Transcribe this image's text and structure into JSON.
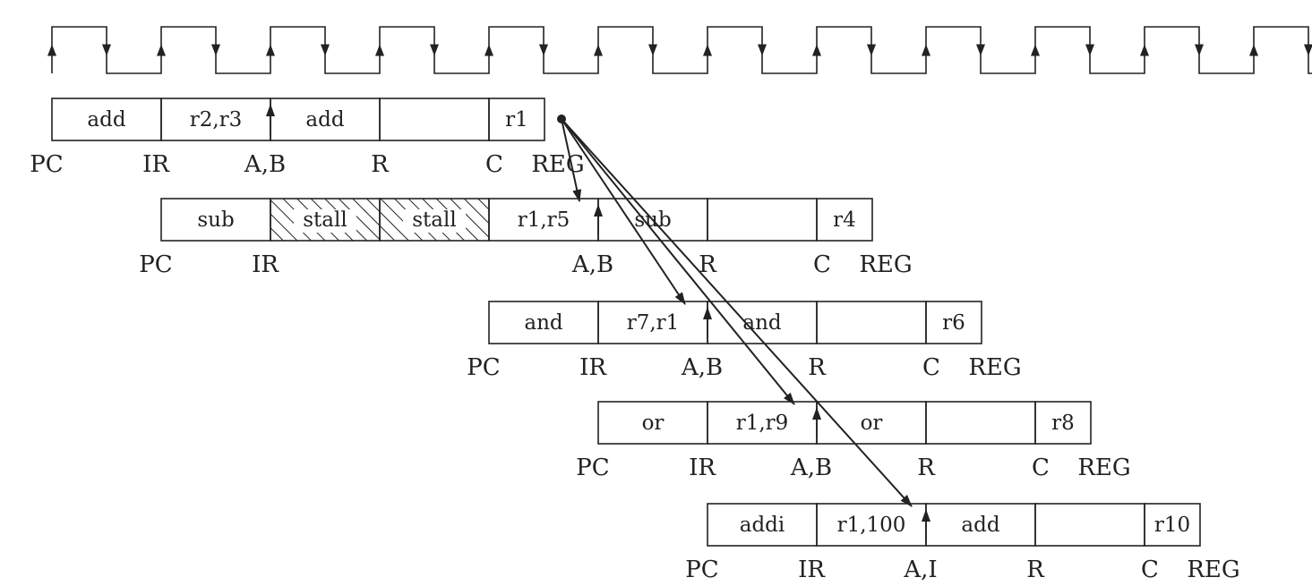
{
  "clock": {
    "cycles": 12
  },
  "rows": [
    {
      "cells": [
        "add",
        "r2,r3",
        "add",
        "",
        "r1"
      ],
      "labels": [
        "PC",
        "IR",
        "A,B",
        "R",
        "C",
        "REG"
      ]
    },
    {
      "cells": [
        "sub",
        "stall",
        "stall",
        "r1,r5",
        "sub",
        "",
        "r4"
      ],
      "stalled": [
        false,
        true,
        true,
        false,
        false,
        false,
        false
      ],
      "labels": [
        "PC",
        "IR",
        "A,B",
        "R",
        "C",
        "REG"
      ]
    },
    {
      "cells": [
        "and",
        "r7,r1",
        "and",
        "",
        "r6"
      ],
      "labels": [
        "PC",
        "IR",
        "A,B",
        "R",
        "C",
        "REG"
      ]
    },
    {
      "cells": [
        "or",
        "r1,r9",
        "or",
        "",
        "r8"
      ],
      "labels": [
        "PC",
        "IR",
        "A,B",
        "R",
        "C",
        "REG"
      ]
    },
    {
      "cells": [
        "addi",
        "r1,100",
        "add",
        "",
        "r10"
      ],
      "labels": [
        "PC",
        "IR",
        "A,I",
        "R",
        "C",
        "REG"
      ]
    }
  ],
  "forwarding": {
    "source": "r1",
    "targets": [
      "r1,r5",
      "r7,r1",
      "r1,r9",
      "r1,100"
    ]
  }
}
